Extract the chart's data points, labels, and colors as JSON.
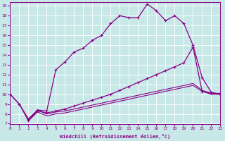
{
  "xlabel": "Windchill (Refroidissement éolien,°C)",
  "background_color": "#c8e8e8",
  "line_color": "#880088",
  "xlim": [
    0,
    23
  ],
  "ylim": [
    7,
    19.4
  ],
  "xticks": [
    0,
    1,
    2,
    3,
    4,
    5,
    6,
    7,
    8,
    9,
    10,
    11,
    12,
    13,
    14,
    15,
    16,
    17,
    18,
    19,
    20,
    21,
    22,
    23
  ],
  "yticks": [
    7,
    8,
    9,
    10,
    11,
    12,
    13,
    14,
    15,
    16,
    17,
    18,
    19
  ],
  "curve1_x": [
    0,
    1,
    2,
    3,
    4,
    5,
    6,
    7,
    8,
    9,
    10,
    11,
    12,
    13,
    14,
    15,
    16,
    17,
    18,
    19,
    20,
    21,
    22,
    23
  ],
  "curve1_y": [
    10,
    9,
    7.3,
    8.4,
    8.3,
    12.5,
    13.3,
    14.3,
    14.7,
    15.5,
    16.0,
    17.2,
    18.0,
    17.8,
    17.8,
    19.2,
    18.5,
    17.5,
    18.0,
    17.2,
    15.0,
    11.7,
    10.2,
    10.0
  ],
  "curve2_x": [
    0,
    1,
    2,
    3,
    4,
    5,
    6,
    7,
    8,
    9,
    10,
    11,
    12,
    13,
    14,
    15,
    16,
    17,
    18,
    19,
    20,
    21,
    22,
    23
  ],
  "curve2_y": [
    10,
    9,
    7.5,
    8.3,
    8.1,
    8.3,
    8.5,
    8.8,
    9.1,
    9.4,
    9.7,
    10.0,
    10.4,
    10.8,
    11.2,
    11.6,
    12.0,
    12.4,
    12.8,
    13.2,
    14.8,
    10.3,
    10.1,
    10.0
  ],
  "curve3_x": [
    2,
    3,
    4,
    5,
    6,
    7,
    8,
    9,
    10,
    11,
    12,
    13,
    14,
    15,
    16,
    17,
    18,
    19,
    20,
    21,
    22,
    23
  ],
  "curve3_y": [
    7.3,
    8.2,
    7.8,
    8.0,
    8.1,
    8.3,
    8.5,
    8.7,
    8.9,
    9.1,
    9.3,
    9.5,
    9.7,
    9.9,
    10.1,
    10.3,
    10.5,
    10.7,
    10.9,
    10.3,
    10.0,
    10.0
  ],
  "curve4_x": [
    2,
    3,
    4,
    5,
    6,
    7,
    8,
    9,
    10,
    11,
    12,
    13,
    14,
    15,
    16,
    17,
    18,
    19,
    20,
    21,
    22,
    23
  ],
  "curve4_y": [
    7.5,
    8.4,
    8.0,
    8.2,
    8.3,
    8.5,
    8.7,
    8.9,
    9.1,
    9.3,
    9.5,
    9.7,
    9.9,
    10.1,
    10.3,
    10.5,
    10.7,
    10.9,
    11.1,
    10.4,
    10.1,
    10.1
  ]
}
